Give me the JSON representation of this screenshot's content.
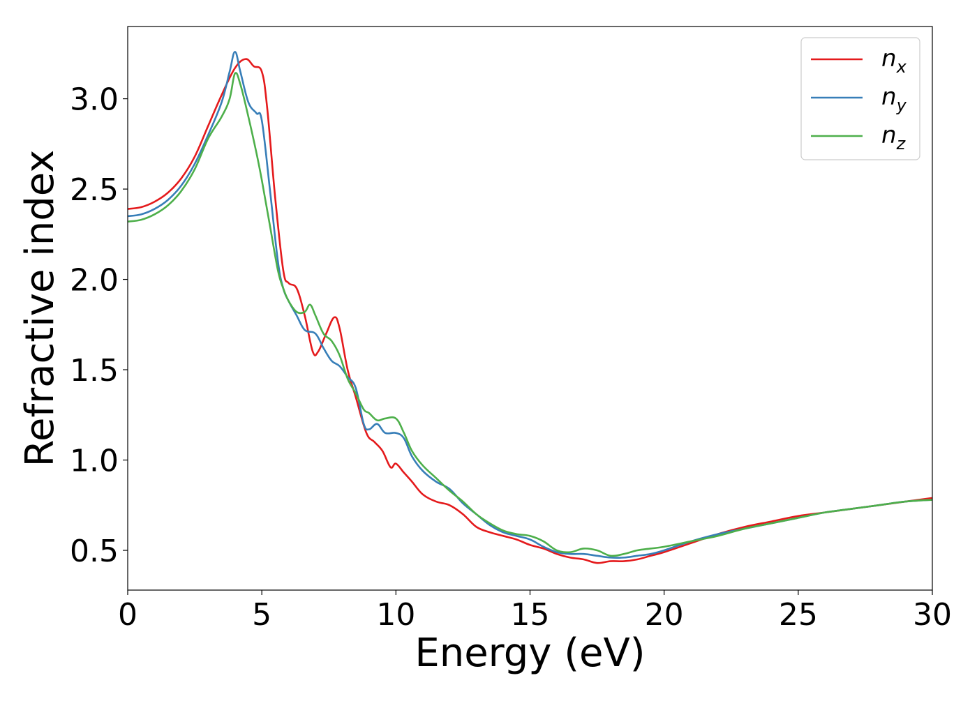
{
  "chart_data": {
    "type": "line",
    "xlabel": "Energy (eV)",
    "ylabel": "Refractive index",
    "xlim": [
      0,
      30
    ],
    "ylim": [
      0.28,
      3.4
    ],
    "x_ticks": [
      0,
      5,
      10,
      15,
      20,
      25,
      30
    ],
    "x_tick_labels": [
      "0",
      "5",
      "10",
      "15",
      "20",
      "25",
      "30"
    ],
    "y_ticks": [
      0.5,
      1.0,
      1.5,
      2.0,
      2.5,
      3.0
    ],
    "y_tick_labels": [
      "0.5",
      "1.0",
      "1.5",
      "2.0",
      "2.5",
      "3.0"
    ],
    "grid": false,
    "legend_position": "top-right",
    "colors": {
      "n_x": "#e41a1c",
      "n_y": "#377eb8",
      "n_z": "#4daf4a"
    },
    "series": [
      {
        "name": "n_x",
        "legend_base": "n",
        "legend_sub": "x",
        "color": "#e41a1c",
        "x": [
          0,
          0.5,
          1.0,
          1.5,
          2.0,
          2.5,
          3.0,
          3.5,
          4.0,
          4.4,
          4.7,
          5.0,
          5.2,
          5.5,
          5.8,
          6.0,
          6.3,
          6.6,
          6.9,
          7.1,
          7.4,
          7.7,
          7.9,
          8.2,
          8.5,
          8.9,
          9.2,
          9.5,
          9.8,
          10.0,
          10.3,
          10.6,
          11.0,
          11.5,
          12.0,
          12.5,
          13.0,
          13.5,
          14.0,
          14.5,
          15.0,
          15.5,
          16.0,
          16.5,
          17.0,
          17.5,
          18.0,
          18.5,
          19.0,
          19.5,
          20.0,
          21.0,
          22.0,
          23.0,
          24.0,
          25.0,
          26.0,
          27.0,
          28.0,
          29.0,
          30.0
        ],
        "y": [
          2.39,
          2.4,
          2.43,
          2.48,
          2.56,
          2.68,
          2.85,
          3.02,
          3.17,
          3.22,
          3.18,
          3.15,
          2.95,
          2.45,
          2.05,
          1.98,
          1.95,
          1.8,
          1.6,
          1.6,
          1.7,
          1.79,
          1.73,
          1.5,
          1.35,
          1.15,
          1.1,
          1.05,
          0.96,
          0.98,
          0.93,
          0.88,
          0.81,
          0.77,
          0.75,
          0.7,
          0.63,
          0.6,
          0.58,
          0.56,
          0.53,
          0.51,
          0.48,
          0.46,
          0.45,
          0.43,
          0.44,
          0.44,
          0.45,
          0.47,
          0.49,
          0.54,
          0.59,
          0.63,
          0.66,
          0.69,
          0.71,
          0.73,
          0.75,
          0.77,
          0.79
        ]
      },
      {
        "name": "n_y",
        "legend_base": "n",
        "legend_sub": "y",
        "color": "#377eb8",
        "x": [
          0,
          0.5,
          1.0,
          1.5,
          2.0,
          2.5,
          3.0,
          3.5,
          3.8,
          4.0,
          4.2,
          4.5,
          4.8,
          5.0,
          5.3,
          5.6,
          5.8,
          6.0,
          6.3,
          6.6,
          7.0,
          7.3,
          7.6,
          7.9,
          8.2,
          8.5,
          8.8,
          9.0,
          9.3,
          9.6,
          10.0,
          10.3,
          10.6,
          11.0,
          11.5,
          12.0,
          12.5,
          13.0,
          13.5,
          14.0,
          14.5,
          15.0,
          15.5,
          16.0,
          16.5,
          17.0,
          17.5,
          18.0,
          18.5,
          19.0,
          19.5,
          20.0,
          21.0,
          22.0,
          23.0,
          24.0,
          25.0,
          26.0,
          27.0,
          28.0,
          29.0,
          30.0
        ],
        "y": [
          2.35,
          2.36,
          2.39,
          2.44,
          2.52,
          2.64,
          2.8,
          2.98,
          3.15,
          3.26,
          3.15,
          2.98,
          2.92,
          2.88,
          2.5,
          2.1,
          1.95,
          1.88,
          1.8,
          1.72,
          1.7,
          1.62,
          1.55,
          1.52,
          1.46,
          1.4,
          1.2,
          1.17,
          1.2,
          1.15,
          1.15,
          1.12,
          1.02,
          0.94,
          0.88,
          0.84,
          0.76,
          0.7,
          0.64,
          0.6,
          0.58,
          0.56,
          0.52,
          0.49,
          0.48,
          0.48,
          0.47,
          0.46,
          0.46,
          0.47,
          0.48,
          0.5,
          0.55,
          0.59,
          0.62,
          0.65,
          0.68,
          0.71,
          0.73,
          0.75,
          0.77,
          0.78
        ]
      },
      {
        "name": "n_z",
        "legend_base": "n",
        "legend_sub": "z",
        "color": "#4daf4a",
        "x": [
          0,
          0.5,
          1.0,
          1.5,
          2.0,
          2.5,
          3.0,
          3.5,
          3.8,
          4.0,
          4.2,
          4.5,
          4.8,
          5.0,
          5.3,
          5.6,
          5.8,
          6.0,
          6.3,
          6.6,
          6.8,
          7.0,
          7.3,
          7.6,
          7.9,
          8.2,
          8.5,
          8.8,
          9.0,
          9.3,
          9.6,
          10.0,
          10.3,
          10.6,
          11.0,
          11.5,
          12.0,
          12.5,
          13.0,
          13.5,
          14.0,
          14.5,
          15.0,
          15.5,
          16.0,
          16.5,
          17.0,
          17.5,
          18.0,
          18.5,
          19.0,
          19.5,
          20.0,
          21.0,
          22.0,
          23.0,
          24.0,
          25.0,
          26.0,
          27.0,
          28.0,
          29.0,
          30.0
        ],
        "y": [
          2.32,
          2.33,
          2.36,
          2.41,
          2.49,
          2.61,
          2.78,
          2.9,
          3.0,
          3.14,
          3.08,
          2.9,
          2.7,
          2.55,
          2.3,
          2.05,
          1.95,
          1.88,
          1.82,
          1.82,
          1.86,
          1.8,
          1.7,
          1.66,
          1.58,
          1.45,
          1.37,
          1.28,
          1.26,
          1.22,
          1.23,
          1.23,
          1.15,
          1.05,
          0.97,
          0.9,
          0.83,
          0.77,
          0.7,
          0.65,
          0.61,
          0.59,
          0.58,
          0.55,
          0.5,
          0.49,
          0.51,
          0.5,
          0.47,
          0.48,
          0.5,
          0.51,
          0.52,
          0.55,
          0.58,
          0.62,
          0.65,
          0.68,
          0.71,
          0.73,
          0.75,
          0.77,
          0.78
        ]
      }
    ]
  }
}
